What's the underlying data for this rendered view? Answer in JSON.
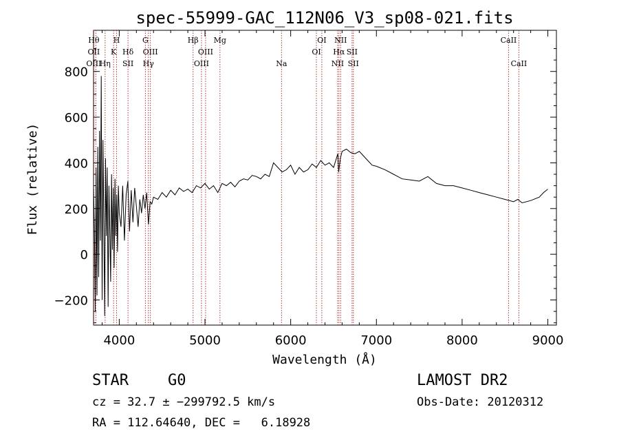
{
  "title": "spec-55999-GAC_112N06_V3_sp08-021.fits",
  "info": {
    "class_label": "STAR",
    "subclass": "G0",
    "survey": "LAMOST DR2",
    "cz_line": "cz = 32.7 ± −299792.5 km/s",
    "obs_date": "Obs-Date: 20120312",
    "radec_line": "RA = 112.64640, DEC =   6.18928"
  },
  "chart_data": {
    "type": "line",
    "title": "spec-55999-GAC_112N06_V3_sp08-021.fits",
    "xlabel": "Wavelength (Å)",
    "ylabel": "Flux (relative)",
    "xlim": [
      3700,
      9100
    ],
    "ylim": [
      -310,
      980
    ],
    "xticks": [
      4000,
      5000,
      6000,
      7000,
      8000,
      9000
    ],
    "yticks": [
      -200,
      0,
      200,
      400,
      600,
      800
    ],
    "grid": false,
    "series": [
      {
        "x": [
          3700,
          3710,
          3720,
          3730,
          3740,
          3750,
          3760,
          3770,
          3780,
          3790,
          3800,
          3810,
          3820,
          3830,
          3840,
          3850,
          3860,
          3870,
          3880,
          3890,
          3900,
          3910,
          3920,
          3930,
          3940,
          3950,
          3960,
          3970,
          3980,
          3990,
          4000,
          4020,
          4040,
          4060,
          4080,
          4100,
          4120,
          4140,
          4160,
          4180,
          4200,
          4220,
          4240,
          4260,
          4280,
          4300,
          4320,
          4340,
          4360,
          4380,
          4400,
          4450,
          4500,
          4550,
          4600,
          4650,
          4700,
          4750,
          4800,
          4850,
          4900,
          4950,
          5000,
          5050,
          5100,
          5150,
          5200,
          5250,
          5300,
          5350,
          5400,
          5450,
          5500,
          5550,
          5600,
          5650,
          5700,
          5750,
          5800,
          5850,
          5900,
          5950,
          6000,
          6050,
          6100,
          6150,
          6200,
          6250,
          6300,
          6350,
          6400,
          6450,
          6500,
          6550,
          6560,
          6580,
          6600,
          6650,
          6700,
          6750,
          6800,
          6850,
          6900,
          6950,
          7000,
          7100,
          7200,
          7300,
          7400,
          7500,
          7600,
          7700,
          7800,
          7900,
          8000,
          8100,
          8200,
          8300,
          8400,
          8500,
          8600,
          8650,
          8700,
          8800,
          8900,
          8950,
          9000
        ],
        "values": [
          290,
          120,
          -250,
          380,
          -180,
          470,
          -100,
          540,
          60,
          780,
          -200,
          500,
          120,
          -270,
          420,
          80,
          380,
          -230,
          300,
          100,
          -120,
          350,
          20,
          290,
          -60,
          330,
          80,
          260,
          10,
          300,
          180,
          120,
          300,
          60,
          260,
          320,
          100,
          280,
          140,
          290,
          210,
          120,
          240,
          180,
          260,
          200,
          270,
          130,
          230,
          220,
          250,
          240,
          270,
          250,
          280,
          260,
          290,
          275,
          285,
          270,
          300,
          290,
          310,
          285,
          300,
          270,
          310,
          300,
          315,
          295,
          320,
          330,
          325,
          345,
          340,
          330,
          350,
          340,
          400,
          380,
          360,
          370,
          390,
          350,
          380,
          360,
          370,
          395,
          380,
          410,
          390,
          400,
          380,
          440,
          360,
          420,
          450,
          460,
          445,
          440,
          450,
          430,
          410,
          390,
          385,
          370,
          350,
          330,
          325,
          320,
          340,
          310,
          300,
          300,
          290,
          280,
          270,
          260,
          250,
          240,
          230,
          240,
          225,
          235,
          250,
          270,
          285
        ]
      }
    ],
    "lines": [
      {
        "x": 3703,
        "top": "Hθ",
        "mid": "OII",
        "bot": "OIII"
      },
      {
        "x": 3727,
        "top": "",
        "mid": "",
        "bot": ""
      },
      {
        "x": 3835,
        "top": "",
        "mid": "",
        "bot": "Hη"
      },
      {
        "x": 3934,
        "top": "",
        "mid": "K",
        "bot": ""
      },
      {
        "x": 3969,
        "top": "H",
        "mid": "",
        "bot": ""
      },
      {
        "x": 4102,
        "top": "",
        "mid": "Hδ",
        "bot": "SII"
      },
      {
        "x": 4305,
        "top": "G",
        "mid": "",
        "bot": ""
      },
      {
        "x": 4340,
        "top": "",
        "mid": "",
        "bot": "Hγ"
      },
      {
        "x": 4363,
        "top": "",
        "mid": "OIII",
        "bot": ""
      },
      {
        "x": 4861,
        "top": "Hβ",
        "mid": "",
        "bot": ""
      },
      {
        "x": 4959,
        "top": "",
        "mid": "",
        "bot": "OIII"
      },
      {
        "x": 5007,
        "top": "",
        "mid": "OIII",
        "bot": ""
      },
      {
        "x": 5175,
        "top": "Mg",
        "mid": "",
        "bot": ""
      },
      {
        "x": 5893,
        "top": "",
        "mid": "",
        "bot": "Na"
      },
      {
        "x": 6300,
        "top": "",
        "mid": "OI",
        "bot": ""
      },
      {
        "x": 6363,
        "top": "OI",
        "mid": "",
        "bot": ""
      },
      {
        "x": 6548,
        "top": "",
        "mid": "",
        "bot": "NII"
      },
      {
        "x": 6563,
        "top": "",
        "mid": "Hα",
        "bot": ""
      },
      {
        "x": 6583,
        "top": "NII",
        "mid": "",
        "bot": ""
      },
      {
        "x": 6716,
        "top": "",
        "mid": "SII",
        "bot": ""
      },
      {
        "x": 6731,
        "top": "",
        "mid": "",
        "bot": "SII"
      },
      {
        "x": 8542,
        "top": "CaII",
        "mid": "",
        "bot": ""
      },
      {
        "x": 8662,
        "top": "",
        "mid": "",
        "bot": "CaII"
      }
    ]
  }
}
